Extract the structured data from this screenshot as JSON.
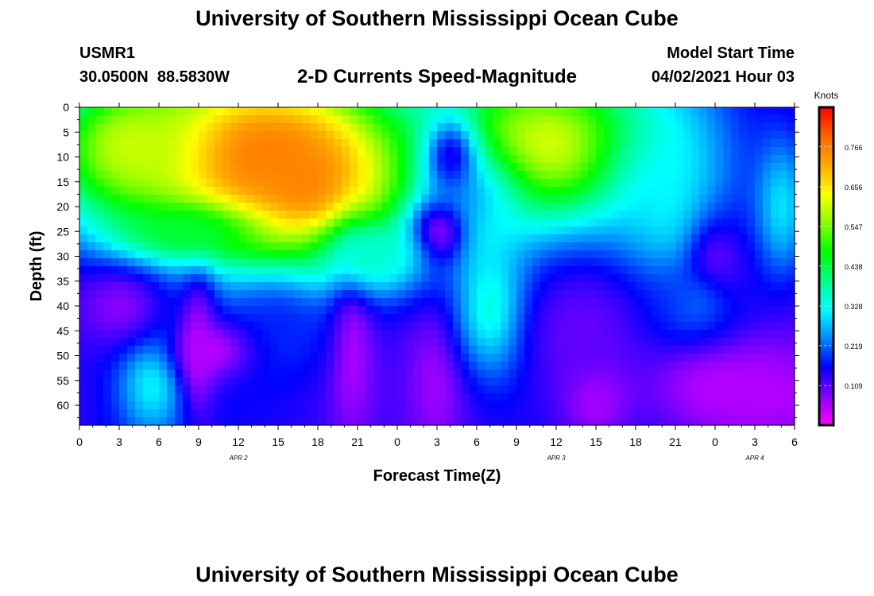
{
  "header": {
    "title": "University of Southern Mississippi Ocean Cube",
    "station_id": "USMR1",
    "station_coords": "30.0500N  88.5830W",
    "chart_title": "2-D Currents Speed-Magnitude",
    "model_label": "Model Start Time",
    "model_time": "04/02/2021 Hour 03"
  },
  "footer": {
    "title": "University of Southern Mississippi Ocean Cube"
  },
  "chart_data": {
    "type": "heatmap",
    "title": "2-D Currents Speed-Magnitude",
    "xlabel": "Forecast Time(Z)",
    "ylabel": "Depth (ft)",
    "x_tick_labels": [
      "0",
      "3",
      "6",
      "9",
      "12",
      "15",
      "18",
      "21",
      "0",
      "3",
      "6",
      "9",
      "12",
      "15",
      "18",
      "21",
      "0",
      "3",
      "6"
    ],
    "x_range_hours": [
      0,
      54
    ],
    "y_ticks": [
      0,
      5,
      10,
      15,
      20,
      25,
      30,
      35,
      40,
      45,
      50,
      55,
      60
    ],
    "y_range": [
      0,
      64
    ],
    "y_inverted": true,
    "date_labels": [
      {
        "label": "APR 2",
        "hour": 12
      },
      {
        "label": "APR 3",
        "hour": 36
      },
      {
        "label": "APR 4",
        "hour": 51
      }
    ],
    "colorbar": {
      "unit": "Knots",
      "range": [
        0,
        0.875
      ],
      "ticks": [
        0.109,
        0.219,
        0.328,
        0.438,
        0.547,
        0.656,
        0.766
      ],
      "colors": [
        "#ff00ff",
        "#8800ff",
        "#0000ff",
        "#0088ff",
        "#00ffff",
        "#00ff88",
        "#00ff00",
        "#88ff00",
        "#ffff00",
        "#ffaa00",
        "#ff6600",
        "#ff0000"
      ]
    },
    "approximate_field": [
      {
        "hour": 13,
        "depth": 10,
        "value": 0.82,
        "sx": 7.0,
        "sy": 12.0
      },
      {
        "hour": 17,
        "depth": 16,
        "value": 0.77,
        "sx": 5.0,
        "sy": 12.0
      },
      {
        "hour": 4,
        "depth": 8,
        "value": 0.6,
        "sx": 4.5,
        "sy": 10.0
      },
      {
        "hour": 35,
        "depth": 8,
        "value": 0.62,
        "sx": 7.0,
        "sy": 13.0
      },
      {
        "hour": 30,
        "depth": 20,
        "value": 0.3,
        "sx": 2.5,
        "sy": 8.0
      },
      {
        "hour": 44,
        "depth": 20,
        "value": 0.32,
        "sx": 3.0,
        "sy": 14.0
      },
      {
        "hour": 53,
        "depth": 20,
        "value": 0.3,
        "sx": 1.5,
        "sy": 10.0
      },
      {
        "hour": 27,
        "depth": 26,
        "value": 0.03,
        "sx": 1.5,
        "sy": 5.0
      },
      {
        "hour": 28,
        "depth": 10,
        "value": 0.15,
        "sx": 1.5,
        "sy": 6.0
      },
      {
        "hour": 27,
        "depth": 55,
        "value": 0.06,
        "sx": 1.5,
        "sy": 10.0
      },
      {
        "hour": 31.5,
        "depth": 41,
        "value": 0.4,
        "sx": 2.0,
        "sy": 9.0
      },
      {
        "hour": 5.5,
        "depth": 55,
        "value": 0.32,
        "sx": 1.8,
        "sy": 8.0
      },
      {
        "hour": 3,
        "depth": 40,
        "value": 0.08,
        "sx": 2.5,
        "sy": 6.0
      },
      {
        "hour": 9,
        "depth": 48,
        "value": 0.04,
        "sx": 1.0,
        "sy": 10.0
      },
      {
        "hour": 20.5,
        "depth": 48,
        "value": 0.04,
        "sx": 1.2,
        "sy": 12.0
      },
      {
        "hour": 15,
        "depth": 45,
        "value": 0.18,
        "sx": 3.0,
        "sy": 8.0
      },
      {
        "hour": 10,
        "depth": 49,
        "value": 0.05,
        "sx": 2.0,
        "sy": 4.0
      },
      {
        "hour": 39,
        "depth": 58,
        "value": 0.02,
        "sx": 1.8,
        "sy": 6.0
      },
      {
        "hour": 48,
        "depth": 55,
        "value": 0.04,
        "sx": 4.0,
        "sy": 8.0
      },
      {
        "hour": 52,
        "depth": 58,
        "value": 0.05,
        "sx": 3.0,
        "sy": 6.0
      },
      {
        "hour": 48,
        "depth": 35,
        "value": 0.06,
        "sx": 1.5,
        "sy": 8.0
      },
      {
        "hour": 22,
        "depth": 30,
        "value": 0.35,
        "sx": 3.0,
        "sy": 5.0
      },
      {
        "hour": 8,
        "depth": 25,
        "value": 0.45,
        "sx": 4.0,
        "sy": 4.0
      },
      {
        "hour": 46,
        "depth": 40,
        "value": 0.22,
        "sx": 3.0,
        "sy": 6.0
      },
      {
        "hour": 38,
        "depth": 45,
        "value": 0.1,
        "sx": 4.0,
        "sy": 12.0
      }
    ]
  }
}
